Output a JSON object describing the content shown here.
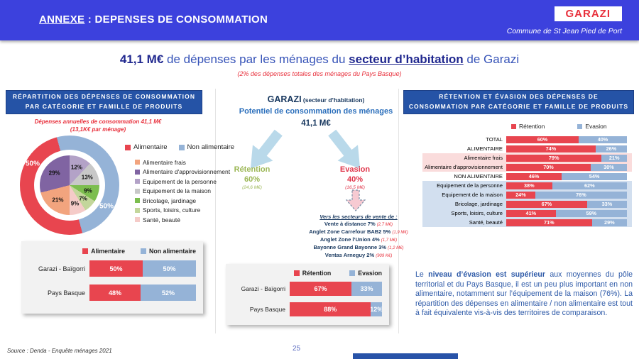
{
  "colors": {
    "header_bg": "#3C41DD",
    "panel_header_bg": "#2553A6",
    "red": "#E8454F",
    "light_blue": "#95B3D7",
    "accent_red_text": "#E8303C",
    "retention_green": "#9CB756",
    "evasion_red": "#E0354A",
    "arrow_blue": "#B9D9EA",
    "pink_row_bg": "#FADCDC",
    "blue_row_bg": "#D2DFEF"
  },
  "header": {
    "annexe": "ANNEXE",
    "title_rest": " : DEPENSES DE CONSOMMATION",
    "badge": "GARAZI",
    "commune": "Commune de St Jean Pied de Port"
  },
  "title": {
    "amount": "41,1 M€",
    "mid": " de dépenses par les ménages du ",
    "highlight": "secteur d’habitation",
    "end": " de Garazi",
    "subtitle": "(2% des dépenses totales des ménages du Pays Basque)"
  },
  "left_panel": {
    "header": "RÉPARTITION DES DÉPENSES DE CONSOMMATION PAR CATÉGORIE ET FAMILLE DE PRODUITS",
    "note1": "Dépenses annuelles de consommation 41,1 M€",
    "note2": "(13,1K€ par ménage)"
  },
  "middle": {
    "garazi": "GARAZI",
    "garazi_sub": " (secteur d’habitation)",
    "potential": "Potentiel de consommation des ménages",
    "amount": "41,1 M€",
    "retention_label": "Rétention",
    "retention_pct": "60%",
    "retention_amount": "(24,6 M€)",
    "evasion_label": "Evasion",
    "evasion_pct": "40%",
    "evasion_amount": "(16,5 M€)",
    "vers_title": "Vers les secteurs de vente de :",
    "destinations": [
      {
        "name": "Vente à distance 7% ",
        "amount": "(2,7 M€)"
      },
      {
        "name": "Anglet Zone Carrefour BAB2 5% ",
        "amount": "(1,9 M€)"
      },
      {
        "name": "Anglet Zone l’Union 4% ",
        "amount": "(1,7 M€)"
      },
      {
        "name": "Bayonne Grand Bayonne 3% ",
        "amount": "(1,2 M€)"
      },
      {
        "name": "Ventas Arneguy 2% ",
        "amount": "(909 K€)"
      }
    ]
  },
  "right_panel": {
    "header": "RÉTENTION ET ÉVASION DES DÉPENSES DE CONSOMMATION PAR CATÉGORIE ET FAMILLE DE PRODUITS",
    "commentary_lead": "Le ",
    "commentary_bold": "niveau d’évasion est supérieur",
    "commentary_rest": " aux moyennes du pôle territorial et du Pays Basque, il est un peu plus important en non alimentaire, notamment sur l’équipement de la maison (76%). La répartition des dépenses en alimentaire / non alimentaire est tout à fait équivalente vis-à-vis des territoires de comparaison."
  },
  "footer": {
    "source": "Source : Denda - Enquête ménages 2021",
    "page": "25"
  },
  "chart_data": [
    {
      "type": "pie",
      "title": "Répartition des dépenses de consommation par catégorie et famille de produits",
      "outer_rotation": -15,
      "outer": [
        {
          "label": "Non alimentaire",
          "value": 50,
          "color": "#95B3D7"
        },
        {
          "label": "Alimentaire",
          "value": 50,
          "color": "#E8454F"
        }
      ],
      "inner": [
        {
          "label": "Equipement de la personne",
          "value": 12,
          "color": "#B3A2C7"
        },
        {
          "label": "Equipement de la maison",
          "value": 13,
          "color": "#C8C8C8"
        },
        {
          "label": "Bricolage, jardinage",
          "value": 9,
          "color": "#7CBE4F"
        },
        {
          "label": "Sports, loisirs, culture",
          "value": 7,
          "color": "#C3D69B"
        },
        {
          "label": "Santé, beauté",
          "value": 9,
          "color": "#F5CBC8"
        },
        {
          "label": "Alimentaire frais",
          "value": 21,
          "color": "#F2A47E"
        },
        {
          "label": "Alimentaire d'approvisionnement",
          "value": 29,
          "color": "#8064A2"
        }
      ]
    },
    {
      "type": "stacked_bar",
      "legend": [
        "Alimentaire",
        "Non alimentaire"
      ],
      "rows": [
        {
          "label": "Garazi - Baïgorri",
          "alimentaire": 50,
          "non_alimentaire": 50
        },
        {
          "label": "Pays Basque",
          "alimentaire": 48,
          "non_alimentaire": 52
        }
      ]
    },
    {
      "type": "stacked_bar",
      "legend": [
        "Rétention",
        "Evasion"
      ],
      "rows": [
        {
          "label": "Garazi - Baïgorri",
          "retention": 67,
          "evasion": 33
        },
        {
          "label": "Pays Basque",
          "retention": 88,
          "evasion": 12
        }
      ]
    },
    {
      "type": "stacked_bar",
      "legend": [
        "Rétention",
        "Evasion"
      ],
      "rows": [
        {
          "label": "TOTAL",
          "retention": 60,
          "evasion": 40
        },
        {
          "label": "ALIMENTAIRE",
          "retention": 74,
          "evasion": 26
        },
        {
          "label": "Alimentaire frais",
          "retention": 79,
          "evasion": 21,
          "highlight": "pink"
        },
        {
          "label": "Alimentaire d'approvisionnement",
          "retention": 70,
          "evasion": 30,
          "highlight": "pink"
        },
        {
          "label": "NON ALIMENTAIRE",
          "retention": 46,
          "evasion": 54
        },
        {
          "label": "Equipement de la personne",
          "retention": 38,
          "evasion": 62,
          "highlight": "blue"
        },
        {
          "label": "Equipement de la maison",
          "retention": 24,
          "evasion": 76,
          "highlight": "blue"
        },
        {
          "label": "Bricolage, jardinage",
          "retention": 67,
          "evasion": 33,
          "highlight": "blue"
        },
        {
          "label": "Sports, loisirs, culture",
          "retention": 41,
          "evasion": 59,
          "highlight": "blue"
        },
        {
          "label": "Santé, beauté",
          "retention": 71,
          "evasion": 29,
          "highlight": "blue"
        }
      ]
    }
  ]
}
